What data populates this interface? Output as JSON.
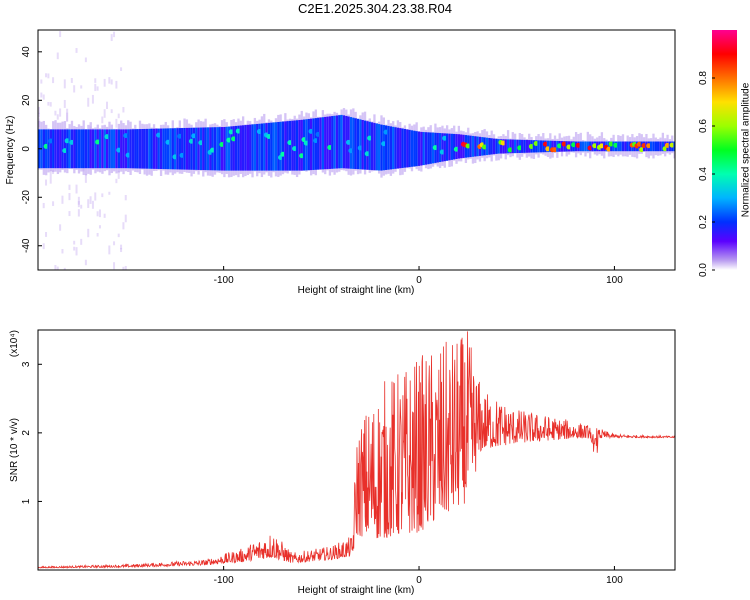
{
  "title": "C2E1.2025.304.23.38.R04",
  "colors": {
    "snr_line": "#e8302a",
    "frame": "#000000"
  },
  "chart_data": [
    {
      "type": "heatmap",
      "xlabel": "Height of straight line (km)",
      "ylabel": "Frequency (Hz)",
      "xlim": [
        -195,
        131
      ],
      "ylim": [
        -50,
        49
      ],
      "xticks": [
        -100,
        0,
        100
      ],
      "xtick_labels": [
        "-100",
        "0",
        "100"
      ],
      "yticks": [
        -40,
        -20,
        0,
        20,
        40
      ],
      "ytick_labels": [
        "-40",
        "-20",
        "0",
        "20",
        "40"
      ],
      "colorbar": {
        "label": "Normalized spectral amplitude",
        "range": [
          0,
          1
        ],
        "ticks": [
          0.0,
          0.2,
          0.4,
          0.6,
          0.8
        ],
        "tick_labels": [
          "0.0",
          "0.2",
          "0.4",
          "0.6",
          "0.8"
        ]
      },
      "band": [
        {
          "x": -195,
          "lo": -8,
          "hi": 8
        },
        {
          "x": -150,
          "lo": -8,
          "hi": 8
        },
        {
          "x": -100,
          "lo": -9,
          "hi": 9
        },
        {
          "x": -60,
          "lo": -9,
          "hi": 12
        },
        {
          "x": -40,
          "lo": -8,
          "hi": 14
        },
        {
          "x": -20,
          "lo": -9,
          "hi": 10
        },
        {
          "x": 0,
          "lo": -7,
          "hi": 7
        },
        {
          "x": 20,
          "lo": -4,
          "hi": 6
        },
        {
          "x": 40,
          "lo": -2,
          "hi": 4
        },
        {
          "x": 80,
          "lo": -1,
          "hi": 3
        },
        {
          "x": 131,
          "lo": -1,
          "hi": 3
        }
      ]
    },
    {
      "type": "line",
      "xlabel": "Height of straight line (km)",
      "ylabel": "SNR (10 * v/v)",
      "scale_label": "(x10⁴)",
      "xlim": [
        -195,
        131
      ],
      "ylim": [
        0,
        3.5
      ],
      "xticks": [
        -100,
        0,
        100
      ],
      "xtick_labels": [
        "-100",
        "0",
        "100"
      ],
      "yticks": [
        1,
        2,
        3
      ],
      "ytick_labels": [
        "1",
        "2",
        "3"
      ],
      "series": [
        {
          "name": "SNR",
          "envelope": [
            {
              "x": -195,
              "base": 0.03,
              "amp": 0.02
            },
            {
              "x": -150,
              "base": 0.04,
              "amp": 0.04
            },
            {
              "x": -110,
              "base": 0.07,
              "amp": 0.08
            },
            {
              "x": -90,
              "base": 0.12,
              "amp": 0.2
            },
            {
              "x": -75,
              "base": 0.18,
              "amp": 0.4
            },
            {
              "x": -65,
              "base": 0.1,
              "amp": 0.15
            },
            {
              "x": -45,
              "base": 0.15,
              "amp": 0.2
            },
            {
              "x": -34,
              "base": 0.2,
              "amp": 0.3
            },
            {
              "x": -32,
              "base": 0.5,
              "amp": 1.6
            },
            {
              "x": -20,
              "base": 0.45,
              "amp": 2.3
            },
            {
              "x": 0,
              "base": 0.55,
              "amp": 2.6
            },
            {
              "x": 25,
              "base": 1.0,
              "amp": 2.5
            },
            {
              "x": 32,
              "base": 1.75,
              "amp": 0.9
            },
            {
              "x": 50,
              "base": 1.85,
              "amp": 0.5
            },
            {
              "x": 80,
              "base": 1.92,
              "amp": 0.25
            },
            {
              "x": 92,
              "base": 1.92,
              "amp": 0.15
            },
            {
              "x": 100,
              "base": 1.93,
              "amp": 0.05
            },
            {
              "x": 131,
              "base": 1.93,
              "amp": 0.02
            }
          ]
        }
      ]
    }
  ]
}
